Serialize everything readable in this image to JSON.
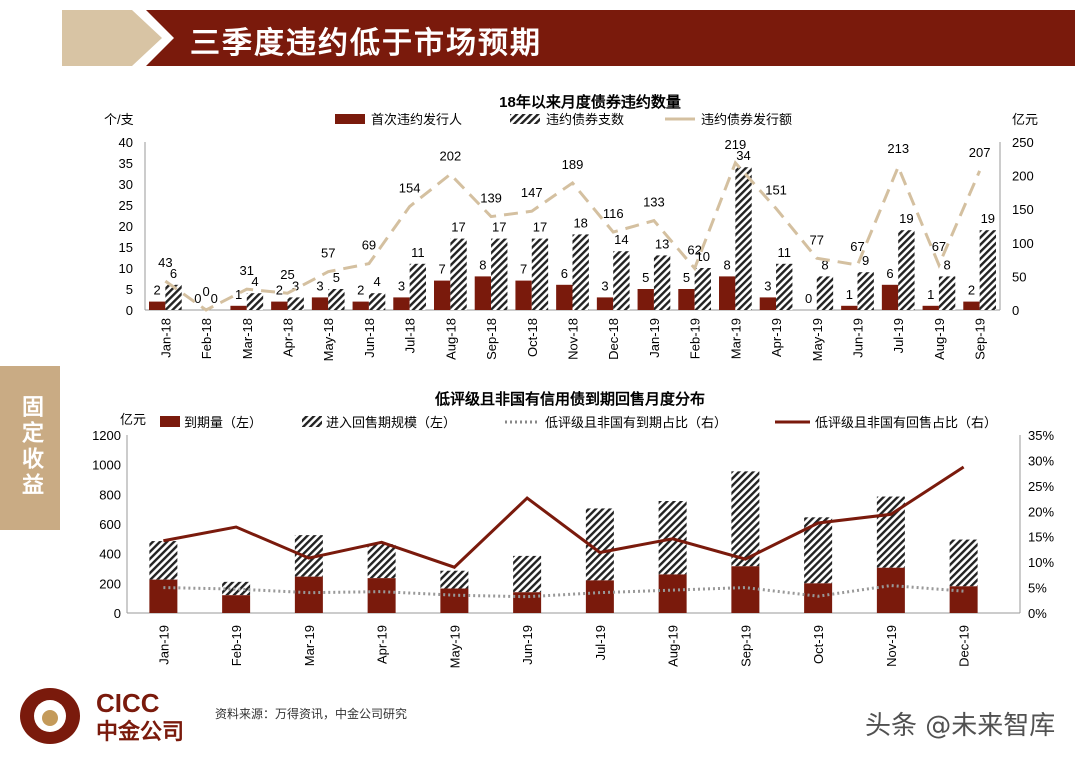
{
  "header": {
    "title": "三季度违约低于市场预期"
  },
  "side_tab": "固定收益",
  "footer": {
    "source": "资料来源：万得资讯，中金公司研究",
    "logo_en": "CICC",
    "logo_cn": "中金公司",
    "watermark": "头条 @未来智库"
  },
  "colors": {
    "dark_red": "#7a1a0c",
    "tan": "#d4c0a0",
    "hatch": "#222222"
  },
  "chart_data": [
    {
      "type": "bar",
      "title": "18年以来月度债券违约数量",
      "ylabel_left": "个/支",
      "ylabel_right": "亿元",
      "ylim_left": [
        0,
        40
      ],
      "yticks_left": [
        "0",
        "5",
        "10",
        "15",
        "20",
        "25",
        "30",
        "35",
        "40"
      ],
      "ylim_right": [
        0,
        250
      ],
      "yticks_right": [
        "0",
        "50",
        "100",
        "150",
        "200",
        "250"
      ],
      "categories": [
        "Jan-18",
        "Feb-18",
        "Mar-18",
        "Apr-18",
        "May-18",
        "Jun-18",
        "Jul-18",
        "Aug-18",
        "Sep-18",
        "Oct-18",
        "Nov-18",
        "Dec-18",
        "Jan-19",
        "Feb-19",
        "Mar-19",
        "Apr-19",
        "May-19",
        "Jun-19",
        "Jul-19",
        "Aug-19",
        "Sep-19"
      ],
      "series": [
        {
          "name": "首次违约发行人",
          "kind": "bar",
          "axis": "left",
          "values": [
            2,
            0,
            1,
            2,
            3,
            2,
            3,
            7,
            8,
            7,
            6,
            3,
            5,
            5,
            8,
            3,
            0,
            1,
            6,
            1,
            2
          ]
        },
        {
          "name": "违约债券支数",
          "kind": "bar-hatched",
          "axis": "left",
          "values": [
            6,
            0,
            4,
            3,
            5,
            4,
            11,
            17,
            17,
            17,
            18,
            14,
            13,
            10,
            34,
            11,
            8,
            9,
            19,
            8,
            19
          ]
        },
        {
          "name": "违约债券发行额",
          "kind": "line-dashed",
          "axis": "right",
          "values": [
            43,
            0,
            31,
            25,
            57,
            69,
            154,
            202,
            139,
            147,
            189,
            116,
            133,
            62,
            219,
            151,
            77,
            67,
            213,
            67,
            207
          ]
        }
      ],
      "legend": "top",
      "data_labels": true
    },
    {
      "type": "bar",
      "title": "低评级且非国有信用债到期回售月度分布",
      "ylabel_left": "亿元",
      "ylim_left": [
        0,
        1200
      ],
      "yticks_left": [
        "0",
        "200",
        "400",
        "600",
        "800",
        "1000",
        "1200"
      ],
      "ylim_right": [
        0,
        35
      ],
      "yticks_right": [
        "0%",
        "5%",
        "10%",
        "15%",
        "20%",
        "25%",
        "30%",
        "35%"
      ],
      "categories": [
        "Jan-19",
        "Feb-19",
        "Mar-19",
        "Apr-19",
        "May-19",
        "Jun-19",
        "Jul-19",
        "Aug-19",
        "Sep-19",
        "Oct-19",
        "Nov-19",
        "Dec-19"
      ],
      "series": [
        {
          "name": "到期量（左）",
          "kind": "bar-stacked",
          "axis": "left",
          "values": [
            225,
            120,
            245,
            235,
            165,
            140,
            220,
            260,
            315,
            200,
            305,
            180
          ]
        },
        {
          "name": "进入回售期规模（左）",
          "kind": "bar-stacked-hatched",
          "axis": "left",
          "values": [
            260,
            90,
            280,
            230,
            120,
            245,
            485,
            495,
            640,
            445,
            480,
            315
          ]
        },
        {
          "name": "低评级且非国有到期占比（右）",
          "kind": "line-dotted",
          "axis": "right",
          "values": [
            5.0,
            4.7,
            4.0,
            4.2,
            3.5,
            3.2,
            4.0,
            4.5,
            5.0,
            3.3,
            5.4,
            4.3
          ]
        },
        {
          "name": "低评级且非国有回售占比（右）",
          "kind": "line",
          "axis": "right",
          "values": [
            14.2,
            16.9,
            10.8,
            13.9,
            9.0,
            22.6,
            11.9,
            14.6,
            10.6,
            17.7,
            19.4,
            28.7
          ]
        }
      ],
      "legend": "top"
    }
  ]
}
